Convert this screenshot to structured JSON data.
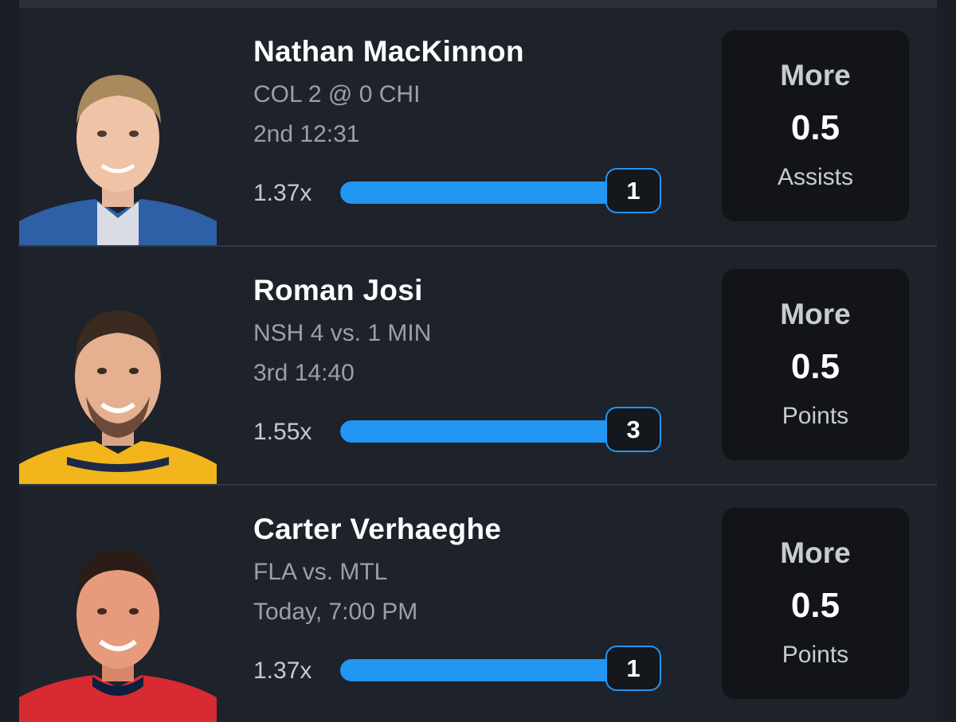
{
  "picks": [
    {
      "player": "Nathan MacKinnon",
      "matchup": "COL 2 @ 0 CHI",
      "game_time": "2nd 12:31",
      "multiplier": "1.37x",
      "progress_value": "1",
      "direction": "More",
      "line": "0.5",
      "stat": "Assists",
      "jersey_color": "#2f5fa5",
      "hair_color": "#a98a5c"
    },
    {
      "player": "Roman Josi",
      "matchup": "NSH 4 vs. 1 MIN",
      "game_time": "3rd 14:40",
      "multiplier": "1.55x",
      "progress_value": "3",
      "direction": "More",
      "line": "0.5",
      "stat": "Points",
      "jersey_color": "#f2b51b",
      "hair_color": "#3a2a20"
    },
    {
      "player": "Carter Verhaeghe",
      "matchup": "FLA vs. MTL",
      "game_time": "Today, 7:00 PM",
      "multiplier": "1.37x",
      "progress_value": "1",
      "direction": "More",
      "line": "0.5",
      "stat": "Points",
      "jersey_color": "#d72a32",
      "hair_color": "#2a1d17"
    }
  ],
  "colors": {
    "accent": "#2196f3",
    "background": "#1b1e24",
    "card_bg": "#1e222a",
    "pick_box_bg": "#121418"
  },
  "progress_fill": 1.0
}
